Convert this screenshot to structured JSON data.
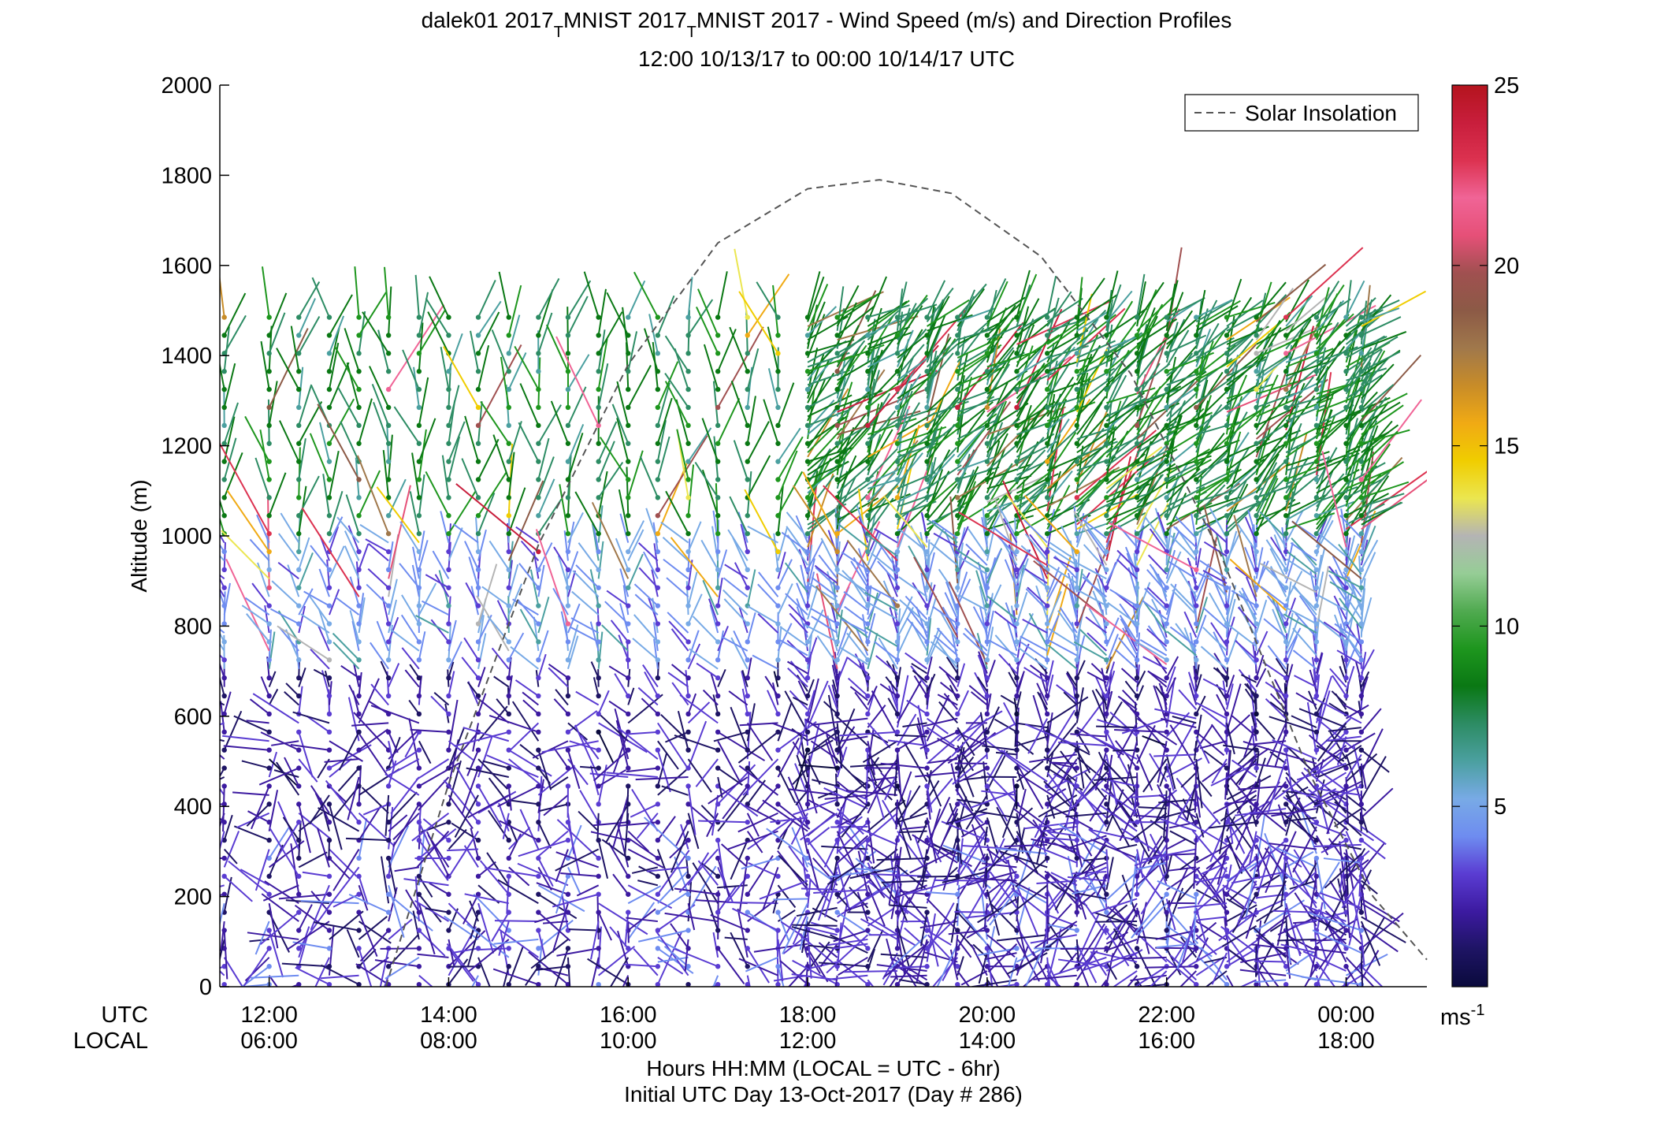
{
  "chart_data": {
    "type": "wind-profile-barbs",
    "title_line1_pre": "dalek01 2017",
    "title_line1_sub1": "T",
    "title_line1_mid": "MNIST 2017",
    "title_line1_sub2": "T",
    "title_line1_post": "MNIST 2017 - Wind Speed (m/s) and Direction Profiles",
    "title_line2": "12:00 10/13/17 to 00:00 10/14/17  UTC",
    "ylabel": "Altitude (m)",
    "ylim": [
      0,
      2000
    ],
    "yticks": [
      "0",
      "200",
      "400",
      "600",
      "800",
      "1000",
      "1200",
      "1400",
      "1600",
      "1800",
      "2000"
    ],
    "ytick_values": [
      0,
      200,
      400,
      600,
      800,
      1000,
      1200,
      1400,
      1600,
      1800,
      2000
    ],
    "xlim_hours": [
      11.45,
      24.9
    ],
    "xtick_hours": [
      12,
      14,
      16,
      18,
      20,
      22,
      24
    ],
    "xticks_utc": [
      "12:00",
      "14:00",
      "16:00",
      "18:00",
      "20:00",
      "22:00",
      "00:00"
    ],
    "xticks_local": [
      "06:00",
      "08:00",
      "10:00",
      "12:00",
      "14:00",
      "16:00",
      "18:00"
    ],
    "x_row_label_utc": "UTC",
    "x_row_label_local": "LOCAL",
    "xlabel_line1": "Hours HH:MM  (LOCAL = UTC - 6hr)",
    "xlabel_line2": "Initial UTC Day 13-Oct-2017 (Day # 286)",
    "legend": {
      "label": "Solar Insolation",
      "placement": "top-right",
      "style": "dashed",
      "color": "#555555"
    },
    "solar_insolation_curve": {
      "peak_hour": 18.8,
      "peak_altitude_m": 1790,
      "points": [
        {
          "hour": 13.3,
          "alt": 0
        },
        {
          "hour": 14.0,
          "alt": 450
        },
        {
          "hour": 15.0,
          "alt": 980
        },
        {
          "hour": 16.0,
          "alt": 1380
        },
        {
          "hour": 17.0,
          "alt": 1650
        },
        {
          "hour": 18.0,
          "alt": 1770
        },
        {
          "hour": 18.8,
          "alt": 1790
        },
        {
          "hour": 19.6,
          "alt": 1760
        },
        {
          "hour": 20.6,
          "alt": 1620
        },
        {
          "hour": 21.6,
          "alt": 1360
        },
        {
          "hour": 22.6,
          "alt": 960
        },
        {
          "hour": 23.6,
          "alt": 470
        },
        {
          "hour": 24.3,
          "alt": 200
        },
        {
          "hour": 24.9,
          "alt": 60
        }
      ]
    },
    "profile_hours": [
      11.5,
      12.0,
      12.33,
      12.67,
      13.0,
      13.33,
      13.67,
      14.0,
      14.33,
      14.67,
      15.0,
      15.33,
      15.67,
      16.0,
      16.33,
      16.67,
      17.0,
      17.33,
      17.67,
      18.0,
      18.33,
      18.67,
      19.0,
      19.33,
      19.67,
      20.0,
      20.33,
      20.67,
      21.0,
      21.33,
      21.67,
      22.0,
      22.33,
      22.67,
      23.0,
      23.33,
      23.67,
      24.0,
      24.17
    ],
    "profile_top_m": 1490,
    "speed_by_layer": [
      {
        "alt_range": [
          0,
          300
        ],
        "speed_ms": 2.5,
        "note_color": "#4b2fb3"
      },
      {
        "alt_range": [
          300,
          700
        ],
        "speed_ms": 2.0,
        "note_color": "#2c1a8c"
      },
      {
        "alt_range": [
          700,
          1000
        ],
        "speed_ms": 4.5,
        "note_color": "#6b8fe8"
      },
      {
        "alt_range": [
          1000,
          1500
        ],
        "speed_ms": 8.0,
        "note_color": "#1e8a2e"
      }
    ],
    "colorbar": {
      "min": 0,
      "max": 25,
      "ticks": [
        "5",
        "10",
        "15",
        "20",
        "25"
      ],
      "tick_values": [
        5,
        10,
        15,
        20,
        25
      ],
      "unit_label": "ms",
      "unit_exp": "-1",
      "colors": [
        "#0a0a3c",
        "#1e1464",
        "#3c1aa0",
        "#5a3cd2",
        "#6e8cf0",
        "#78aae6",
        "#4ba0a0",
        "#2d8c64",
        "#0a7814",
        "#1e961e",
        "#50aa50",
        "#96cd96",
        "#b4b4b4",
        "#ebe650",
        "#f0cd00",
        "#f0aa14",
        "#c88c28",
        "#a0784b",
        "#8c5a46",
        "#a05050",
        "#e65078",
        "#f06496",
        "#dc3250",
        "#c81e3c",
        "#b4141e"
      ]
    }
  }
}
